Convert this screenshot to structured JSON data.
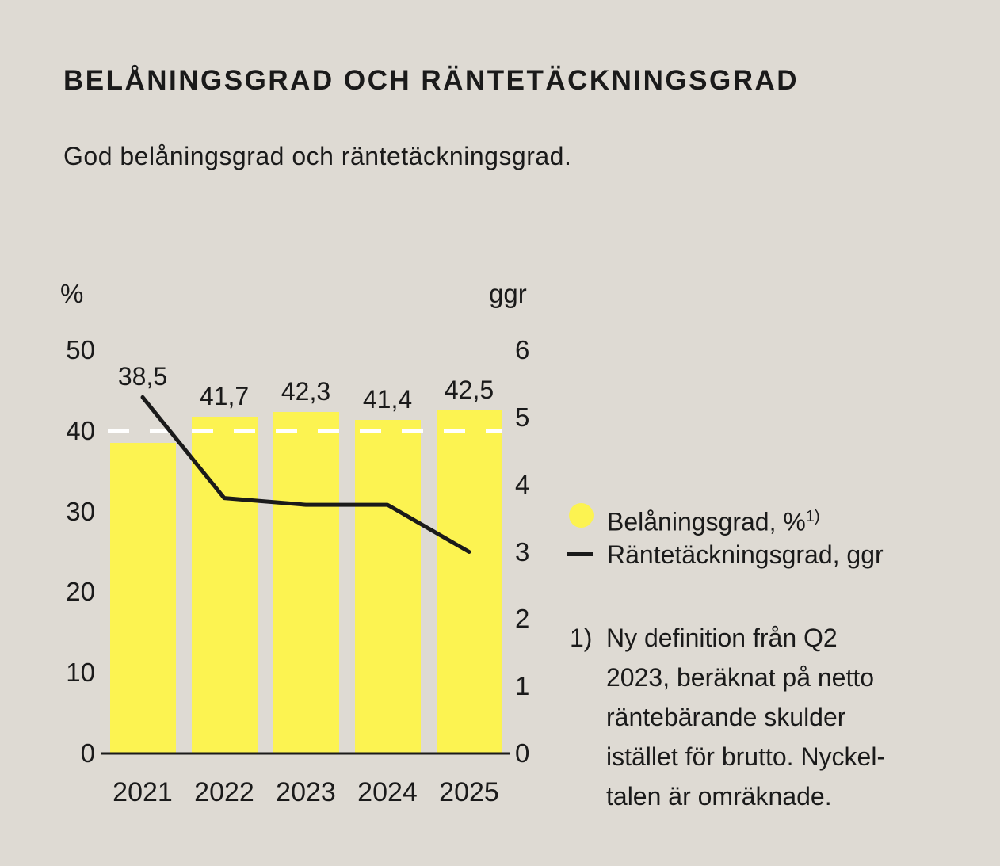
{
  "page": {
    "title": "BELÅNINGSGRAD OCH RÄNTETÄCKNINGSGRAD",
    "subtitle": "God belåningsgrad och räntetäckningsgrad."
  },
  "colors": {
    "background": "#DEDAD3",
    "bar_yellow": "#FCF351",
    "line_black": "#1A1A1A",
    "reference_white": "#FFFFFF"
  },
  "chart_data": {
    "type": "bar+line (dual axis)",
    "categories": [
      "2021",
      "2022",
      "2023",
      "2024",
      "2025"
    ],
    "series": [
      {
        "name": "Belåningsgrad, %",
        "type": "bar",
        "axis": "left",
        "unit": "%",
        "color": "#FCF351",
        "values": [
          38.5,
          41.7,
          42.3,
          41.4,
          42.5
        ],
        "value_labels": [
          "38,5",
          "41,7",
          "42,3",
          "41,4",
          "42,5"
        ]
      },
      {
        "name": "Räntetäckningsgrad, ggr",
        "type": "line",
        "axis": "right",
        "unit": "ggr",
        "color": "#1A1A1A",
        "values": [
          5.3,
          3.8,
          3.7,
          3.7,
          3.0
        ]
      }
    ],
    "left_axis": {
      "unit": "%",
      "range": [
        0,
        50
      ],
      "ticks": [
        0,
        10,
        20,
        30,
        40,
        50
      ]
    },
    "right_axis": {
      "unit": "ggr",
      "range": [
        0,
        6
      ],
      "ticks": [
        0,
        1,
        2,
        3,
        4,
        5,
        6
      ]
    },
    "reference_line": {
      "axis": "left",
      "value": 40,
      "style": "dashed",
      "color": "#FFFFFF"
    },
    "grid": false,
    "legend_position": "right"
  },
  "legend": {
    "items": [
      {
        "swatch": "circle",
        "color": "#FCF351",
        "label": "Belåningsgrad, %",
        "footnote_marker": "1)"
      },
      {
        "swatch": "line",
        "color": "#1A1A1A",
        "label": "Räntetäckningsgrad, ggr",
        "footnote_marker": ""
      }
    ]
  },
  "footnote": {
    "marker": "1)",
    "lines": [
      "Ny definition från Q2",
      "2023, beräknat på netto",
      "räntebärande skulder",
      "istället för brutto. Nyckel-",
      "talen är omräknade."
    ]
  }
}
